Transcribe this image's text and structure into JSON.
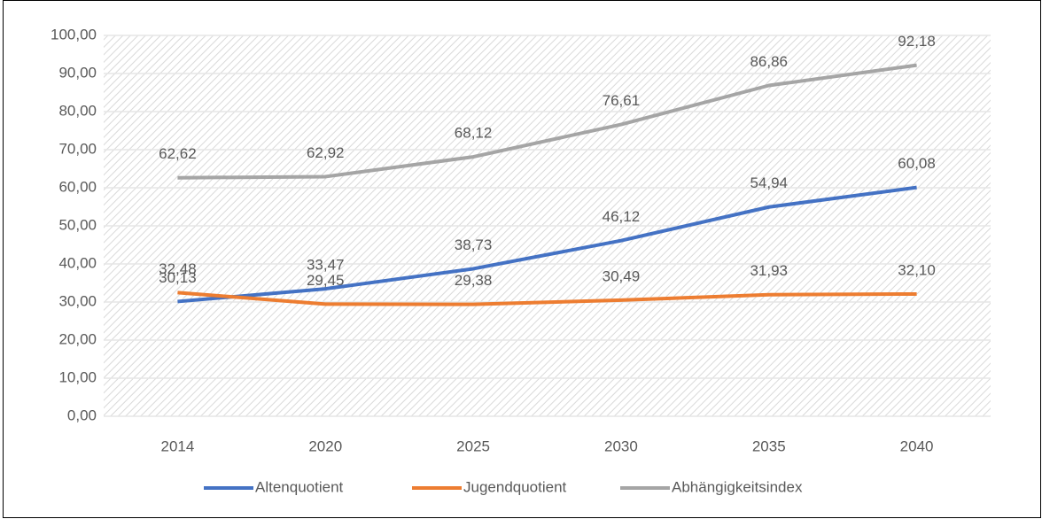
{
  "chart_data": {
    "type": "line",
    "categories": [
      "2014",
      "2020",
      "2025",
      "2030",
      "2035",
      "2040"
    ],
    "series": [
      {
        "name": "Altenquotient",
        "color": "#4472c4",
        "values": [
          30.13,
          33.47,
          38.73,
          46.12,
          54.94,
          60.08
        ],
        "value_labels": [
          "30,13",
          "33,47",
          "38,73",
          "46,12",
          "54,94",
          "60,08"
        ]
      },
      {
        "name": "Jugendquotient",
        "color": "#ed7d31",
        "values": [
          32.48,
          29.45,
          29.38,
          30.49,
          31.93,
          32.1
        ],
        "value_labels": [
          "32,48",
          "29,45",
          "29,38",
          "30,49",
          "31,93",
          "32,10"
        ]
      },
      {
        "name": "Abhängigkeitsindex",
        "color": "#a5a5a5",
        "values": [
          62.62,
          62.92,
          68.12,
          76.61,
          86.86,
          92.18
        ],
        "value_labels": [
          "62,62",
          "62,92",
          "68,12",
          "76,61",
          "86,86",
          "92,18"
        ]
      }
    ],
    "ylim": [
      0,
      100
    ],
    "yticks": [
      {
        "value": 0,
        "label": "0,00"
      },
      {
        "value": 10,
        "label": "10,00"
      },
      {
        "value": 20,
        "label": "20,00"
      },
      {
        "value": 30,
        "label": "30,00"
      },
      {
        "value": 40,
        "label": "40,00"
      },
      {
        "value": 50,
        "label": "50,00"
      },
      {
        "value": 60,
        "label": "60,00"
      },
      {
        "value": 70,
        "label": "70,00"
      },
      {
        "value": 80,
        "label": "80,00"
      },
      {
        "value": 90,
        "label": "90,00"
      },
      {
        "value": 100,
        "label": "100,00"
      }
    ],
    "grid": true,
    "legend": "bottom"
  }
}
